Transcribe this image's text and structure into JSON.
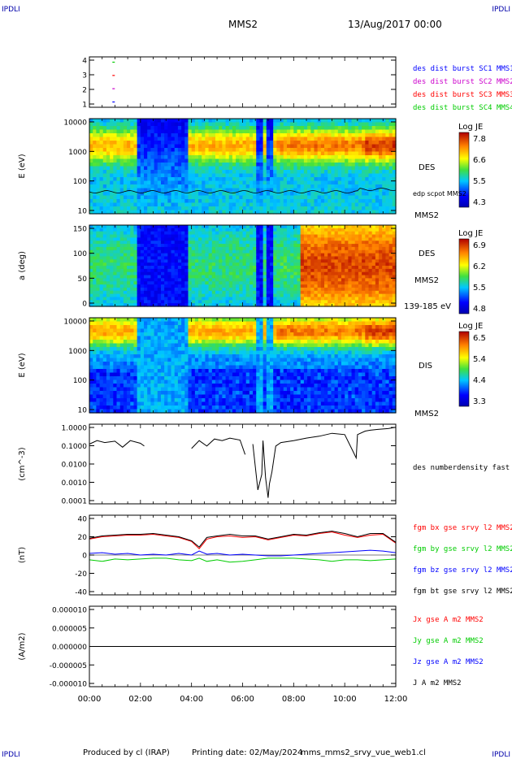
{
  "header": {
    "corner_tl": "IPDLI",
    "corner_tr": "IPDLI",
    "corner_bl": "IPDLI",
    "corner_br": "IPDLI",
    "spacecraft": "MMS2",
    "date": "13/Aug/2017 00:00"
  },
  "footer": {
    "produced_by": "Produced by cl (IRAP)",
    "printing_date": "Printing date: 02/May/2024",
    "script_name": "mms_mms2_srvy_vue_web1.cl"
  },
  "time_axis": {
    "ticks": [
      "00:00",
      "02:00",
      "04:00",
      "06:00",
      "08:00",
      "10:00",
      "12:00"
    ],
    "range_hours": [
      0,
      12
    ]
  },
  "colors": {
    "sc1": "#0000ff",
    "sc2": "#cc00cc",
    "sc3": "#ff0000",
    "sc4": "#00cc00",
    "bx": "#ff0000",
    "by": "#00cc00",
    "bz": "#0000ff",
    "bt": "#000000"
  },
  "chart_data": [
    {
      "type": "scatter",
      "panel": "burst",
      "y_ticks": [
        "4",
        "3",
        "2",
        "1"
      ],
      "ylim": [
        0.6,
        4.4
      ],
      "series": [
        {
          "name": "des dist burst SC1 MMS1",
          "color": "#0000ff",
          "x_hours": [
            0.9
          ],
          "values": [
            1
          ]
        },
        {
          "name": "des dist burst SC2 MMS2",
          "color": "#cc00cc",
          "x_hours": [
            0.9
          ],
          "values": [
            2
          ]
        },
        {
          "name": "des dist burst SC3 MMS3",
          "color": "#ff0000",
          "x_hours": [
            0.9
          ],
          "values": [
            3
          ]
        },
        {
          "name": "des dist burst SC4 MMS4",
          "color": "#00cc00",
          "x_hours": [
            0.9
          ],
          "values": [
            4
          ]
        }
      ]
    },
    {
      "type": "heatmap",
      "panel": "des_energy",
      "ylabel": "E (eV)",
      "y_ticks": [
        "10000",
        "1000",
        "100",
        "10"
      ],
      "ylim": [
        10,
        30000
      ],
      "yscale": "log",
      "right_labels": [
        "DES",
        "edp scpot MMS2",
        "MMS2"
      ],
      "colorbar": {
        "title": "Log JE",
        "ticks": [
          "7.8",
          "6.6",
          "5.5",
          "4.3"
        ]
      }
    },
    {
      "type": "heatmap",
      "panel": "des_pitch",
      "ylabel": "a (deg)",
      "y_ticks": [
        "150",
        "100",
        "50",
        "0"
      ],
      "ylim": [
        0,
        180
      ],
      "right_labels": [
        "DES",
        "MMS2",
        "139-185 eV"
      ],
      "colorbar": {
        "title": "Log JE",
        "ticks": [
          "6.9",
          "6.2",
          "5.5",
          "4.8"
        ]
      }
    },
    {
      "type": "heatmap",
      "panel": "dis_energy",
      "ylabel": "E (eV)",
      "y_ticks": [
        "10000",
        "1000",
        "100",
        "10"
      ],
      "ylim": [
        10,
        30000
      ],
      "yscale": "log",
      "right_labels": [
        "DIS",
        "MMS2"
      ],
      "colorbar": {
        "title": "Log JE",
        "ticks": [
          "6.5",
          "5.4",
          "4.4",
          "3.3"
        ]
      }
    },
    {
      "type": "line",
      "panel": "density",
      "ylabel": "(cm^-3)",
      "y_ticks": [
        "1.0000",
        "0.1000",
        "0.0100",
        "0.0010",
        "0.0001"
      ],
      "ylim": [
        0.0001,
        1.0
      ],
      "yscale": "log",
      "series": [
        {
          "name": "des numberdensity fast M",
          "color": "#000000",
          "x": [
            0.0,
            0.3,
            0.6,
            1.0,
            1.3,
            1.6,
            2.0,
            2.15,
            2.16,
            3.9,
            4.0,
            4.3,
            4.6,
            4.9,
            5.2,
            5.5,
            5.9,
            6.1,
            6.2,
            6.4,
            6.6,
            6.75,
            6.8,
            6.9,
            7.0,
            7.05,
            7.15,
            7.3,
            7.5,
            8.0,
            8.5,
            9.0,
            9.5,
            10.0,
            10.3,
            10.45,
            10.5,
            10.8,
            11.0,
            11.3,
            11.7,
            12.0
          ],
          "values": [
            0.1,
            0.15,
            0.12,
            0.14,
            0.07,
            0.15,
            0.11,
            0.08,
            null,
            null,
            0.06,
            0.15,
            0.08,
            0.18,
            0.15,
            0.2,
            0.16,
            0.03,
            null,
            0.1,
            0.0005,
            0.003,
            0.15,
            0.002,
            0.0002,
            0.001,
            0.004,
            0.08,
            0.12,
            0.15,
            0.2,
            0.25,
            0.35,
            0.3,
            0.05,
            0.02,
            0.3,
            0.45,
            0.5,
            0.55,
            0.6,
            0.7
          ]
        }
      ]
    },
    {
      "type": "line",
      "panel": "magnetic_field",
      "ylabel": "(nT)",
      "y_ticks": [
        "40",
        "20",
        "0",
        "-20",
        "-40"
      ],
      "ylim": [
        -50,
        50
      ],
      "series": [
        {
          "name": "fgm bx gse srvy l2 MMS2",
          "color": "#ff0000",
          "x": [
            0,
            0.5,
            1,
            1.5,
            2,
            2.5,
            3,
            3.5,
            4,
            4.3,
            4.6,
            5,
            5.5,
            6,
            6.5,
            7,
            7.5,
            8,
            8.5,
            9,
            9.5,
            10,
            10.5,
            11,
            11.5,
            12
          ],
          "values": [
            20,
            23,
            24,
            25,
            25,
            26,
            24,
            22,
            17,
            8,
            20,
            23,
            24,
            22,
            23,
            19,
            22,
            25,
            24,
            27,
            29,
            25,
            22,
            25,
            26,
            15
          ]
        },
        {
          "name": "fgm by gse srvy l2 MMS2",
          "color": "#00cc00",
          "x": [
            0,
            0.5,
            1,
            1.5,
            2,
            2.5,
            3,
            3.5,
            4,
            4.3,
            4.6,
            5,
            5.5,
            6,
            6.5,
            7,
            7.5,
            8,
            8.5,
            9,
            9.5,
            10,
            10.5,
            11,
            11.5,
            12
          ],
          "values": [
            -6,
            -8,
            -5,
            -6,
            -5,
            -4,
            -4,
            -6,
            -7,
            -4,
            -8,
            -6,
            -9,
            -8,
            -6,
            -4,
            -4,
            -4,
            -5,
            -6,
            -8,
            -6,
            -6,
            -7,
            -6,
            -5
          ]
        },
        {
          "name": "fgm bz gse srvy l2 MMS2",
          "color": "#0000ff",
          "x": [
            0,
            0.5,
            1,
            1.5,
            2,
            2.5,
            3,
            3.5,
            4,
            4.3,
            4.6,
            5,
            5.5,
            6,
            6.5,
            7,
            7.5,
            8,
            8.5,
            9,
            9.5,
            10,
            10.5,
            11,
            11.5,
            12
          ],
          "values": [
            2,
            3,
            1,
            2,
            0,
            1,
            0,
            2,
            0,
            5,
            1,
            2,
            0,
            1,
            0,
            -1,
            -1,
            0,
            1,
            2,
            3,
            4,
            5,
            6,
            5,
            3
          ]
        },
        {
          "name": "fgm bt gse srvy l2 MMS2",
          "color": "#000000",
          "x": [
            0,
            0.5,
            1,
            1.5,
            2,
            2.5,
            3,
            3.5,
            4,
            4.3,
            4.6,
            5,
            5.5,
            6,
            6.5,
            7,
            7.5,
            8,
            8.5,
            9,
            9.5,
            10,
            10.5,
            11,
            11.5,
            12
          ],
          "values": [
            21,
            24,
            25,
            26,
            26,
            27,
            25,
            23,
            18,
            10,
            22,
            24,
            26,
            24,
            24,
            20,
            23,
            26,
            25,
            28,
            30,
            27,
            23,
            27,
            27,
            16
          ]
        }
      ]
    },
    {
      "type": "line",
      "panel": "current_density",
      "ylabel": "(A/m2)",
      "y_ticks": [
        "0.000010",
        "0.000005",
        "0.000000",
        "-0.000005",
        "-0.000010"
      ],
      "ylim": [
        -1e-05,
        1e-05
      ],
      "series": [
        {
          "name": "Jx gse A m2 MMS2",
          "color": "#ff0000",
          "x": [
            0,
            12
          ],
          "values": [
            0,
            0
          ]
        },
        {
          "name": "Jy gse A m2 MMS2",
          "color": "#00cc00",
          "x": [
            0,
            12
          ],
          "values": [
            0,
            0
          ]
        },
        {
          "name": "Jz gse A m2 MMS2",
          "color": "#0000ff",
          "x": [
            0,
            12
          ],
          "values": [
            0,
            0
          ]
        },
        {
          "name": "J A m2 MMS2",
          "color": "#000000",
          "x": [
            0,
            12
          ],
          "values": [
            0,
            0
          ]
        }
      ]
    }
  ]
}
